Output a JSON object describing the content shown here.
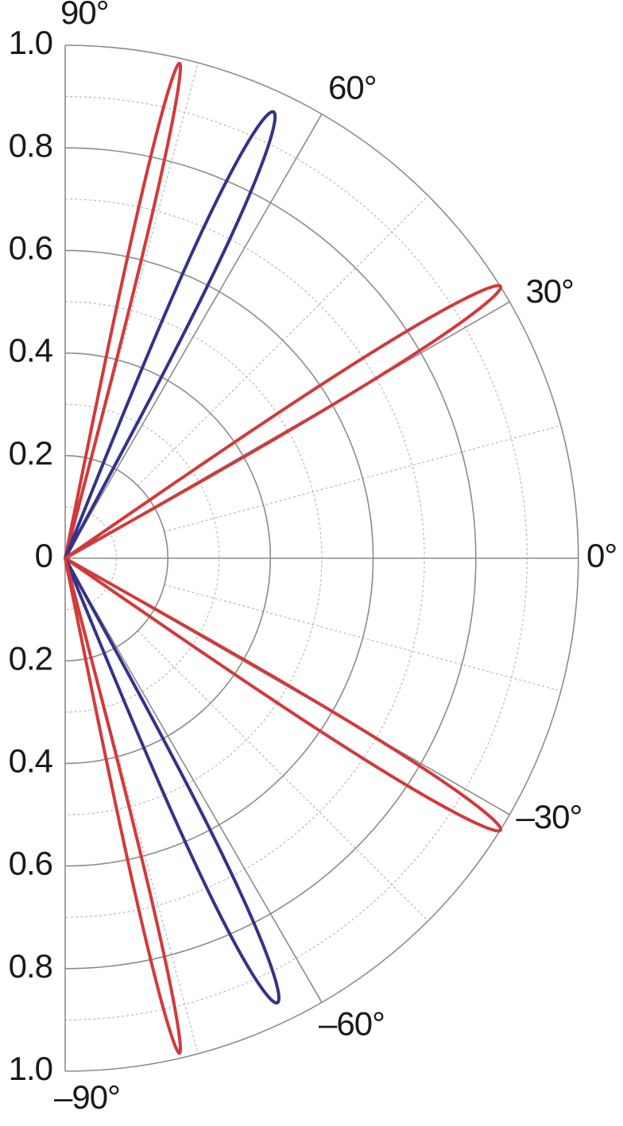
{
  "chart_data": {
    "type": "polar",
    "title": "",
    "angle_range_deg": [
      -90,
      90
    ],
    "r_range": [
      0,
      1.0
    ],
    "r_ticks": [
      {
        "value": 0,
        "label": "0"
      },
      {
        "value": 0.2,
        "label": "0.2"
      },
      {
        "value": 0.4,
        "label": "0.4"
      },
      {
        "value": 0.6,
        "label": "0.6"
      },
      {
        "value": 0.8,
        "label": "0.8"
      },
      {
        "value": 1.0,
        "label": "1.0"
      }
    ],
    "angle_ticks": [
      {
        "value": 90,
        "label": "90°"
      },
      {
        "value": 60,
        "label": "60°"
      },
      {
        "value": 30,
        "label": "30°"
      },
      {
        "value": 0,
        "label": "0°"
      },
      {
        "value": -30,
        "label": "–30°"
      },
      {
        "value": -60,
        "label": "–60°"
      },
      {
        "value": -90,
        "label": "–90°"
      }
    ],
    "grid": {
      "major_r_step": 0.2,
      "minor_r_step": 0.1,
      "major_angle_step": 30,
      "minor_angle_step": 15
    },
    "lobes": [
      {
        "series": "red",
        "peak_angle_deg": 77,
        "peak_r": 0.99,
        "half_width_deg": 1.6
      },
      {
        "series": "blue",
        "peak_angle_deg": 65,
        "peak_r": 0.96,
        "half_width_deg": 3.2
      },
      {
        "series": "red",
        "peak_angle_deg": 32,
        "peak_r": 1.0,
        "half_width_deg": 2.6
      },
      {
        "series": "red",
        "peak_angle_deg": -32,
        "peak_r": 1.0,
        "half_width_deg": 2.6
      },
      {
        "series": "blue",
        "peak_angle_deg": -64.5,
        "peak_r": 0.96,
        "half_width_deg": 3.2
      },
      {
        "series": "red",
        "peak_angle_deg": -77,
        "peak_r": 0.99,
        "half_width_deg": 1.6
      }
    ],
    "series_colors": {
      "red": "#d23a3a",
      "blue": "#33338a"
    }
  }
}
